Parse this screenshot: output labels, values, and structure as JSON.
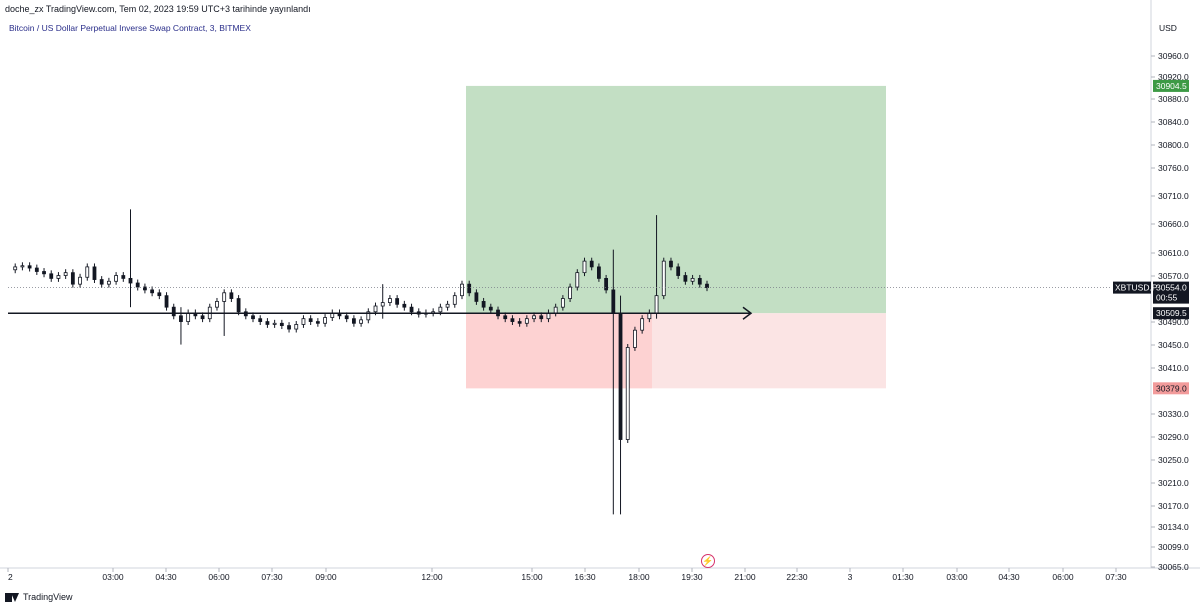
{
  "header": {
    "text": "doche_zx TradingView.com, Tem 02, 2023 19:59 UTC+3 tarihinde yayınlandı"
  },
  "legend": {
    "text": "Bitcoin / US Dollar Perpetual Inverse Swap Contract, 3, BITMEX"
  },
  "footer": {
    "brand": "TradingView"
  },
  "colors": {
    "profit": "#c3dfc4",
    "loss": "#fdd8d8",
    "profit_tag": "#3d9a45",
    "loss_tag": "#f29b9b",
    "candle": "#131722"
  },
  "chart_data": {
    "type": "candlestick",
    "symbol": "XBTUSD.P",
    "timeframe": "3",
    "exchange": "BITMEX",
    "currency": "USD",
    "ylim": [
      30065,
      31000
    ],
    "y_ticks": [
      "30960.0",
      "30920.0",
      "30880.0",
      "30840.0",
      "30800.0",
      "30760.0",
      "30710.0",
      "30660.0",
      "30610.0",
      "30570.0",
      "30490.0",
      "30450.0",
      "30410.0",
      "30330.0",
      "30290.0",
      "30250.0",
      "30210.0",
      "30170.0",
      "30134.0",
      "30099.0",
      "30065.0"
    ],
    "x_ticks": [
      "2",
      "03:00",
      "04:30",
      "06:00",
      "07:30",
      "09:00",
      "12:00",
      "15:00",
      "16:30",
      "18:00",
      "19:30",
      "21:00",
      "22:30",
      "3",
      "01:30",
      "03:00",
      "04:30",
      "06:00",
      "07:30"
    ],
    "price_path": [
      30585,
      30590,
      30592,
      30588,
      30582,
      30578,
      30570,
      30575,
      30580,
      30560,
      30572,
      30590,
      30568,
      30560,
      30565,
      30575,
      30570,
      30562,
      30555,
      30550,
      30545,
      30540,
      30520,
      30505,
      30495,
      30510,
      30505,
      30500,
      30520,
      30530,
      30545,
      30535,
      30512,
      30505,
      30500,
      30495,
      30490,
      30492,
      30488,
      30482,
      30490,
      30500,
      30495,
      30492,
      30502,
      30510,
      30505,
      30500,
      30492,
      30498,
      30512,
      30522,
      30528,
      30535,
      30525,
      30520,
      30512,
      30508,
      30510,
      30512,
      30520,
      30525,
      30540,
      30560,
      30545,
      30530,
      30520,
      30515,
      30505,
      30500,
      30495,
      30492,
      30500,
      30505,
      30500,
      30510,
      30520,
      30535,
      30555,
      30580,
      30600,
      30590,
      30570,
      30550,
      30510,
      30290,
      30450,
      30480,
      30500,
      30510,
      30540,
      30600,
      30590,
      30575,
      30565,
      30570,
      30560,
      30554
    ],
    "position": {
      "entry": 30509.5,
      "target": 30904.5,
      "stop": 30379.0
    },
    "last_price": 30554.0,
    "countdown": "00:55",
    "price_labels": {
      "target": "30904.5",
      "entry": "30509.5",
      "stop": "30379.0",
      "last": "30554.0",
      "symbol": "XBTUSD.P"
    }
  }
}
